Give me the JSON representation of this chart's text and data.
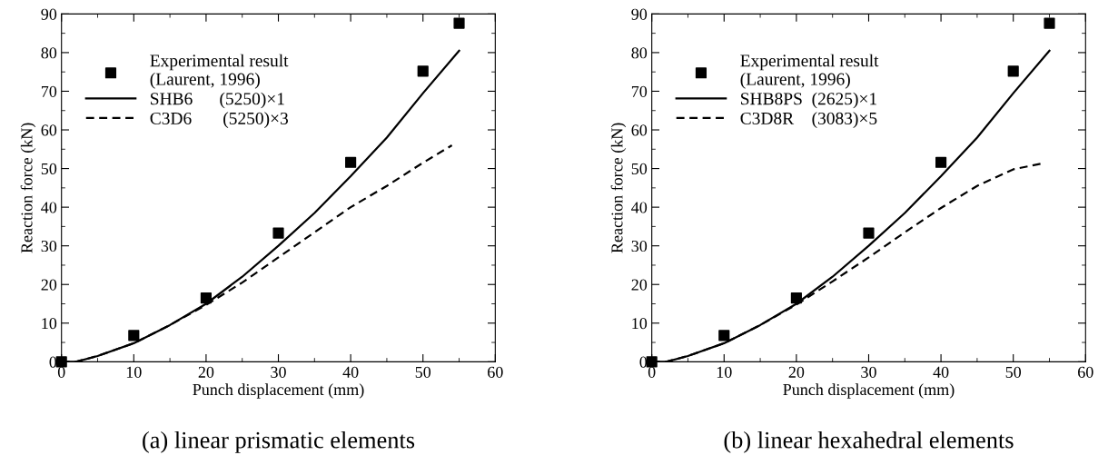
{
  "chart_data": [
    {
      "type": "line",
      "xlabel": "Punch displacement (mm)",
      "ylabel": "Reaction force (kN)",
      "annotations": [
        "(a) linear prismatic elements"
      ],
      "xlim": [
        0,
        60
      ],
      "ylim": [
        0,
        90
      ],
      "xticks": [
        0,
        10,
        20,
        30,
        40,
        50,
        60
      ],
      "yticks": [
        0,
        10,
        20,
        30,
        40,
        50,
        60,
        70,
        80,
        90
      ],
      "legend": "top left",
      "series": [
        {
          "name": "Experimental result\n(Laurent, 1996)",
          "type": "scatter",
          "marker": "square",
          "color": "#000000",
          "x": [
            0,
            10,
            20,
            30,
            40,
            50,
            55
          ],
          "values": [
            0,
            6.8,
            16.5,
            33.3,
            51.6,
            75.2,
            87.6
          ]
        },
        {
          "name": "SHB6      (5250)×1",
          "line_style": "solid",
          "color": "#000000",
          "x": [
            0,
            2,
            5,
            10,
            15,
            20,
            25,
            30,
            35,
            40,
            45,
            50,
            55
          ],
          "values": [
            0,
            0,
            1.5,
            4.8,
            9.5,
            15,
            22,
            30,
            38.5,
            48,
            58,
            69.5,
            80.5
          ]
        },
        {
          "name": "C3D6       (5250)×3",
          "line_style": "dashed",
          "color": "#000000",
          "x": [
            0,
            2,
            5,
            10,
            15,
            20,
            25,
            30,
            35,
            40,
            45,
            50,
            54
          ],
          "values": [
            0,
            0,
            1.5,
            4.8,
            9.5,
            14.7,
            20.5,
            27,
            33.5,
            40,
            45.5,
            51.5,
            56
          ]
        }
      ]
    },
    {
      "type": "line",
      "xlabel": "Punch displacement (mm)",
      "ylabel": "Reaction force (kN)",
      "annotations": [
        "(b) linear hexahedral elements"
      ],
      "xlim": [
        0,
        60
      ],
      "ylim": [
        0,
        90
      ],
      "xticks": [
        0,
        10,
        20,
        30,
        40,
        50,
        60
      ],
      "yticks": [
        0,
        10,
        20,
        30,
        40,
        50,
        60,
        70,
        80,
        90
      ],
      "legend": "top left",
      "series": [
        {
          "name": "Experimental result\n(Laurent, 1996)",
          "type": "scatter",
          "marker": "square",
          "color": "#000000",
          "x": [
            0,
            10,
            20,
            30,
            40,
            50,
            55
          ],
          "values": [
            0,
            6.8,
            16.5,
            33.3,
            51.6,
            75.2,
            87.6
          ]
        },
        {
          "name": "SHB8PS  (2625)×1",
          "line_style": "solid",
          "color": "#000000",
          "x": [
            0,
            2,
            5,
            10,
            15,
            20,
            25,
            30,
            35,
            40,
            45,
            50,
            55
          ],
          "values": [
            0,
            0,
            1.5,
            4.8,
            9.5,
            15,
            22,
            30,
            38.5,
            48,
            58,
            69.5,
            80.5
          ]
        },
        {
          "name": "C3D8R    (3083)×5",
          "line_style": "dashed",
          "color": "#000000",
          "x": [
            0,
            2,
            5,
            10,
            15,
            20,
            25,
            30,
            35,
            40,
            45,
            50,
            54
          ],
          "values": [
            0,
            0,
            1.5,
            4.8,
            9.5,
            14.8,
            20.8,
            27,
            33.5,
            39.8,
            45.5,
            49.8,
            51.3
          ]
        }
      ]
    }
  ]
}
